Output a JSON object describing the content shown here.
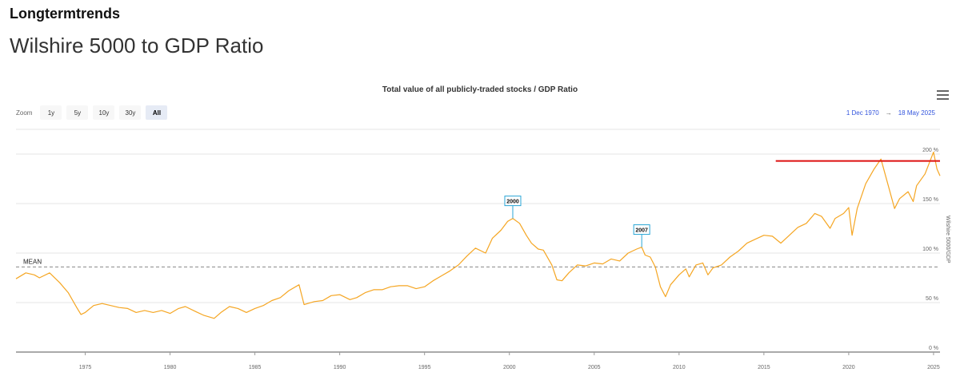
{
  "header": {
    "brand": "Longtermtrends",
    "page_title": "Wilshire 5000 to GDP Ratio"
  },
  "toolbar": {
    "zoom_label": "Zoom",
    "zoom_buttons": [
      "1y",
      "5y",
      "10y",
      "30y",
      "All"
    ],
    "active_zoom": "All",
    "range_from": "1 Dec 1970",
    "range_arrow": "→",
    "range_to": "18 May 2025",
    "menu_icon": "hamburger-menu-icon"
  },
  "chart_data": {
    "type": "line",
    "title": "Total value of all publicly-traded stocks / GDP Ratio",
    "ylabel": "Wilshire 5000/GDP",
    "xlim": [
      1970.92,
      1995.0,
      2025.38
    ],
    "ylim": [
      0,
      225
    ],
    "xticks": [
      "1975",
      "1980",
      "1985",
      "1990",
      "1995",
      "2000",
      "2005",
      "2010",
      "2015",
      "2020",
      "2025"
    ],
    "ytick_values": [
      0,
      50,
      100,
      150,
      200
    ],
    "ytick_labels": [
      "0 %",
      "50 %",
      "100 %",
      "150 %",
      "200 %"
    ],
    "grid": true,
    "colors": {
      "series": "#f5a623",
      "mean": "#888888",
      "peak_line": "#dd1111",
      "flag_border": "#2aa6d6"
    },
    "series": [
      {
        "values": [
          [
            1970.92,
            74
          ],
          [
            1971.5,
            80
          ],
          [
            1972.0,
            78
          ],
          [
            1972.3,
            75
          ],
          [
            1972.9,
            80
          ],
          [
            1973.5,
            70
          ],
          [
            1974.0,
            60
          ],
          [
            1974.5,
            45
          ],
          [
            1974.75,
            38
          ],
          [
            1975.0,
            40
          ],
          [
            1975.5,
            47
          ],
          [
            1976.0,
            49
          ],
          [
            1976.5,
            47
          ],
          [
            1977.0,
            45
          ],
          [
            1977.5,
            44
          ],
          [
            1978.0,
            40
          ],
          [
            1978.5,
            42
          ],
          [
            1979.0,
            40
          ],
          [
            1979.5,
            42
          ],
          [
            1980.0,
            39
          ],
          [
            1980.5,
            44
          ],
          [
            1980.9,
            46
          ],
          [
            1981.5,
            41
          ],
          [
            1982.0,
            37
          ],
          [
            1982.6,
            34
          ],
          [
            1983.0,
            40
          ],
          [
            1983.5,
            46
          ],
          [
            1984.0,
            44
          ],
          [
            1984.5,
            40
          ],
          [
            1985.0,
            44
          ],
          [
            1985.5,
            47
          ],
          [
            1986.0,
            52
          ],
          [
            1986.5,
            55
          ],
          [
            1987.0,
            62
          ],
          [
            1987.6,
            68
          ],
          [
            1987.9,
            48
          ],
          [
            1988.5,
            51
          ],
          [
            1989.0,
            52
          ],
          [
            1989.5,
            57
          ],
          [
            1990.0,
            58
          ],
          [
            1990.6,
            53
          ],
          [
            1991.0,
            55
          ],
          [
            1991.5,
            60
          ],
          [
            1992.0,
            63
          ],
          [
            1992.5,
            63
          ],
          [
            1993.0,
            66
          ],
          [
            1993.5,
            67
          ],
          [
            1994.0,
            67
          ],
          [
            1994.5,
            64
          ],
          [
            1995.0,
            66
          ],
          [
            1995.5,
            72
          ],
          [
            1996.0,
            77
          ],
          [
            1996.5,
            82
          ],
          [
            1997.0,
            88
          ],
          [
            1997.5,
            97
          ],
          [
            1998.0,
            105
          ],
          [
            1998.6,
            100
          ],
          [
            1999.0,
            115
          ],
          [
            1999.5,
            123
          ],
          [
            1999.9,
            132
          ],
          [
            2000.2,
            135
          ],
          [
            2000.6,
            130
          ],
          [
            2001.0,
            118
          ],
          [
            2001.3,
            110
          ],
          [
            2001.7,
            104
          ],
          [
            2002.0,
            103
          ],
          [
            2002.5,
            88
          ],
          [
            2002.8,
            73
          ],
          [
            2003.1,
            72
          ],
          [
            2003.5,
            80
          ],
          [
            2004.0,
            88
          ],
          [
            2004.5,
            87
          ],
          [
            2005.0,
            90
          ],
          [
            2005.5,
            89
          ],
          [
            2006.0,
            94
          ],
          [
            2006.5,
            92
          ],
          [
            2007.0,
            100
          ],
          [
            2007.5,
            104
          ],
          [
            2007.8,
            106
          ],
          [
            2008.0,
            98
          ],
          [
            2008.3,
            96
          ],
          [
            2008.6,
            86
          ],
          [
            2008.9,
            66
          ],
          [
            2009.2,
            56
          ],
          [
            2009.5,
            68
          ],
          [
            2010.0,
            78
          ],
          [
            2010.4,
            84
          ],
          [
            2010.6,
            76
          ],
          [
            2011.0,
            88
          ],
          [
            2011.4,
            90
          ],
          [
            2011.7,
            78
          ],
          [
            2012.0,
            85
          ],
          [
            2012.5,
            88
          ],
          [
            2013.0,
            96
          ],
          [
            2013.5,
            102
          ],
          [
            2014.0,
            110
          ],
          [
            2014.5,
            114
          ],
          [
            2015.0,
            118
          ],
          [
            2015.5,
            117
          ],
          [
            2016.0,
            110
          ],
          [
            2016.5,
            118
          ],
          [
            2017.0,
            126
          ],
          [
            2017.5,
            130
          ],
          [
            2018.0,
            140
          ],
          [
            2018.4,
            137
          ],
          [
            2018.9,
            125
          ],
          [
            2019.2,
            135
          ],
          [
            2019.7,
            140
          ],
          [
            2020.0,
            146
          ],
          [
            2020.2,
            118
          ],
          [
            2020.5,
            145
          ],
          [
            2021.0,
            170
          ],
          [
            2021.5,
            185
          ],
          [
            2021.9,
            195
          ],
          [
            2022.3,
            170
          ],
          [
            2022.7,
            145
          ],
          [
            2023.0,
            155
          ],
          [
            2023.5,
            162
          ],
          [
            2023.8,
            152
          ],
          [
            2024.0,
            168
          ],
          [
            2024.5,
            180
          ],
          [
            2025.0,
            202
          ],
          [
            2025.2,
            185
          ],
          [
            2025.38,
            178
          ]
        ]
      }
    ],
    "mean": {
      "value": 86,
      "label": "MEAN"
    },
    "peak_line": {
      "value": 193,
      "x_start": 2015.7
    },
    "flags": [
      {
        "x": 2000.2,
        "y": 135,
        "label": "2000"
      },
      {
        "x": 2007.8,
        "y": 106,
        "label": "2007"
      }
    ]
  }
}
